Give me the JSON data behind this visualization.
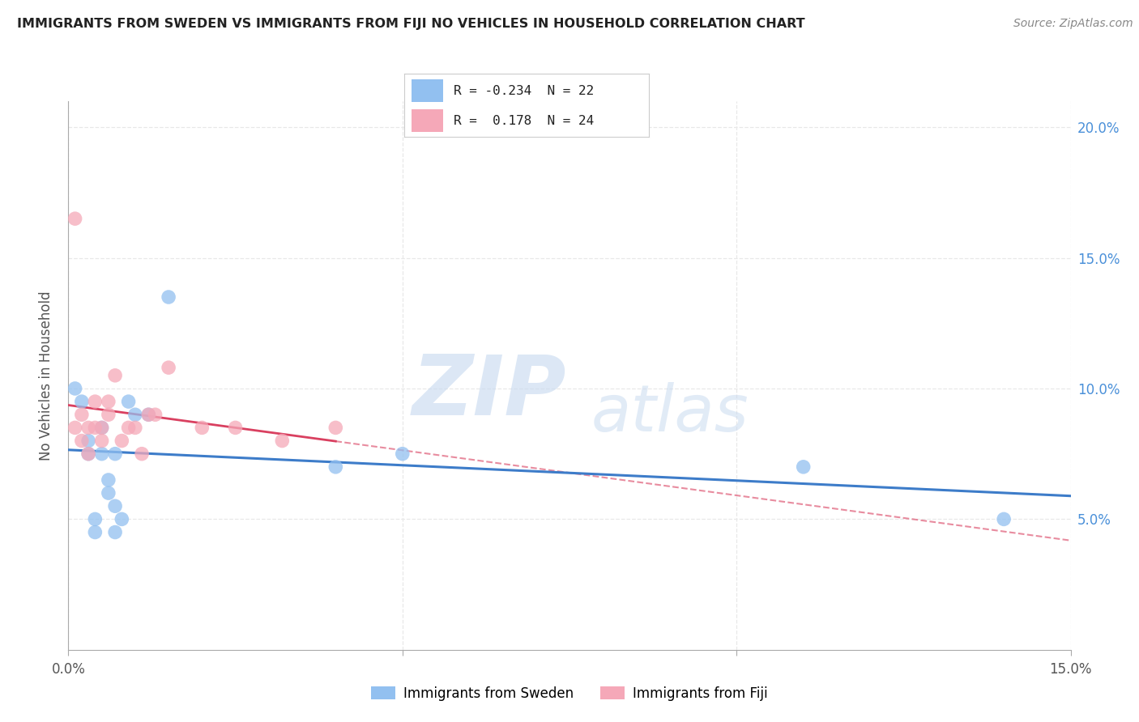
{
  "title": "IMMIGRANTS FROM SWEDEN VS IMMIGRANTS FROM FIJI NO VEHICLES IN HOUSEHOLD CORRELATION CHART",
  "source": "Source: ZipAtlas.com",
  "ylabel": "No Vehicles in Household",
  "xlim": [
    0.0,
    0.15
  ],
  "ylim": [
    0.0,
    0.21
  ],
  "xtick_vals": [
    0.0,
    0.05,
    0.1,
    0.15
  ],
  "xticklabels": [
    "0.0%",
    "",
    "",
    "15.0%"
  ],
  "ytick_vals": [
    0.05,
    0.1,
    0.15,
    0.2
  ],
  "yticklabels_right": [
    "5.0%",
    "10.0%",
    "15.0%",
    "20.0%"
  ],
  "series1_name": "Immigrants from Sweden",
  "series1_color": "#92c0f0",
  "series1_R": "-0.234",
  "series1_N": "22",
  "series2_name": "Immigrants from Fiji",
  "series2_color": "#f5a8b8",
  "series2_R": " 0.178",
  "series2_N": "24",
  "sweden_x": [
    0.001,
    0.002,
    0.003,
    0.003,
    0.004,
    0.004,
    0.005,
    0.005,
    0.006,
    0.006,
    0.007,
    0.007,
    0.007,
    0.008,
    0.009,
    0.01,
    0.012,
    0.015,
    0.04,
    0.05,
    0.11,
    0.14
  ],
  "sweden_y": [
    0.1,
    0.095,
    0.075,
    0.08,
    0.045,
    0.05,
    0.075,
    0.085,
    0.06,
    0.065,
    0.045,
    0.055,
    0.075,
    0.05,
    0.095,
    0.09,
    0.09,
    0.135,
    0.07,
    0.075,
    0.07,
    0.05
  ],
  "fiji_x": [
    0.001,
    0.001,
    0.002,
    0.002,
    0.003,
    0.003,
    0.004,
    0.004,
    0.005,
    0.005,
    0.006,
    0.006,
    0.007,
    0.008,
    0.009,
    0.01,
    0.011,
    0.012,
    0.013,
    0.015,
    0.02,
    0.025,
    0.032,
    0.04
  ],
  "fiji_y": [
    0.085,
    0.165,
    0.08,
    0.09,
    0.075,
    0.085,
    0.095,
    0.085,
    0.08,
    0.085,
    0.09,
    0.095,
    0.105,
    0.08,
    0.085,
    0.085,
    0.075,
    0.09,
    0.09,
    0.108,
    0.085,
    0.085,
    0.08,
    0.085
  ],
  "background_color": "#ffffff",
  "grid_color": "#e8e8e8",
  "grid_style": "--"
}
